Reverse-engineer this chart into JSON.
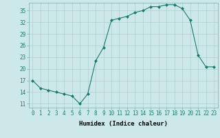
{
  "x": [
    0,
    1,
    2,
    3,
    4,
    5,
    6,
    7,
    8,
    9,
    10,
    11,
    12,
    13,
    14,
    15,
    16,
    17,
    18,
    19,
    20,
    21,
    22,
    23
  ],
  "y": [
    17,
    15,
    14.5,
    14,
    13.5,
    13,
    11,
    13.5,
    22,
    25.5,
    32.5,
    33,
    33.5,
    34.5,
    35,
    36,
    36,
    36.5,
    36.5,
    35.5,
    32.5,
    23.5,
    20.5,
    20.5
  ],
  "line_color": "#1a7a6e",
  "marker": "D",
  "marker_size": 2.0,
  "bg_color": "#cde8e8",
  "grid_color": "#aed0d0",
  "xlabel": "Humidex (Indice chaleur)",
  "xlim": [
    -0.5,
    23.5
  ],
  "ylim": [
    10,
    37
  ],
  "yticks": [
    11,
    14,
    17,
    20,
    23,
    26,
    29,
    32,
    35
  ],
  "xticks": [
    0,
    1,
    2,
    3,
    4,
    5,
    6,
    7,
    8,
    9,
    10,
    11,
    12,
    13,
    14,
    15,
    16,
    17,
    18,
    19,
    20,
    21,
    22,
    23
  ],
  "xlabel_fontsize": 6.5,
  "tick_fontsize": 5.5,
  "linewidth": 0.8
}
